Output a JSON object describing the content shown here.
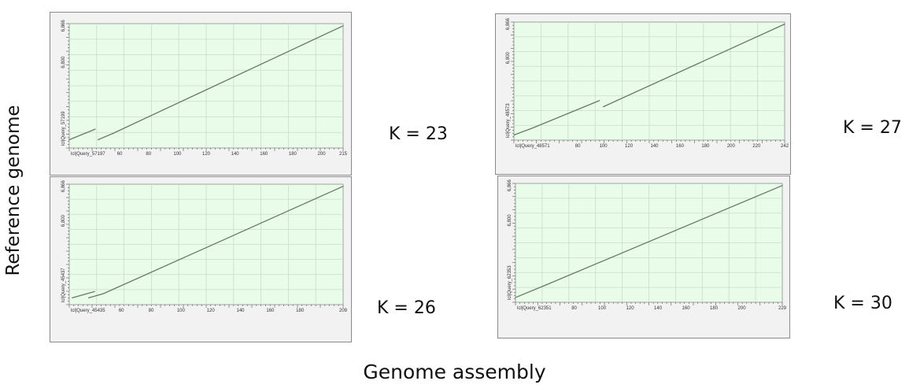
{
  "figure": {
    "ylabel": "Reference genome",
    "xlabel": "Genome assembly"
  },
  "chart_data": [
    {
      "type": "line",
      "k_label": "K = 23",
      "x_start_label": "lcl|Query_57197",
      "y_start_label": "lcl|Query_57199",
      "x_ticks": [
        "60",
        "80",
        "100",
        "120",
        "140",
        "160",
        "180",
        "200",
        "215"
      ],
      "y_ticks": [
        "6,866",
        "6,800"
      ],
      "xlim": [
        25,
        215
      ],
      "ylim": [
        6645,
        6870
      ],
      "series": [
        {
          "x": [
            25,
            43
          ],
          "y": [
            6660,
            6679
          ]
        },
        {
          "x": [
            45,
            55
          ],
          "y": [
            6660,
            6671
          ]
        },
        {
          "x": [
            55,
            215
          ],
          "y": [
            6671,
            6866
          ]
        }
      ]
    },
    {
      "type": "line",
      "k_label": "K = 27",
      "x_start_label": "lcl|Query_48571",
      "y_start_label": "lcl|Query_48573",
      "x_ticks": [
        "80",
        "100",
        "120",
        "140",
        "160",
        "180",
        "200",
        "220",
        "242"
      ],
      "y_ticks": [
        "6,866",
        "6,800"
      ],
      "xlim": [
        30,
        242
      ],
      "ylim": [
        6640,
        6870
      ],
      "series": [
        {
          "x": [
            30,
            45
          ],
          "y": [
            6650,
            6664
          ]
        },
        {
          "x": [
            45,
            97
          ],
          "y": [
            6664,
            6717
          ]
        },
        {
          "x": [
            100,
            242
          ],
          "y": [
            6705,
            6866
          ]
        }
      ]
    },
    {
      "type": "line",
      "k_label": "K = 26",
      "x_start_label": "lcl|Query_45435",
      "y_start_label": "lcl|Query_45437",
      "x_ticks": [
        "60",
        "80",
        "100",
        "120",
        "140",
        "160",
        "180",
        "209"
      ],
      "y_ticks": [
        "6,866",
        "6,800"
      ],
      "xlim": [
        25,
        209
      ],
      "ylim": [
        6640,
        6870
      ],
      "series": [
        {
          "x": [
            27,
            42
          ],
          "y": [
            6653,
            6665
          ]
        },
        {
          "x": [
            38,
            48
          ],
          "y": [
            6653,
            6661
          ]
        },
        {
          "x": [
            48,
            209
          ],
          "y": [
            6661,
            6866
          ]
        }
      ]
    },
    {
      "type": "line",
      "k_label": "K = 30",
      "x_start_label": "lcl|Query_62351",
      "y_start_label": "lcl|Query_62353",
      "x_ticks": [
        "80",
        "100",
        "120",
        "140",
        "160",
        "180",
        "200",
        "229"
      ],
      "y_ticks": [
        "6,866",
        "6,800"
      ],
      "xlim": [
        38,
        229
      ],
      "ylim": [
        6645,
        6870
      ],
      "series": [
        {
          "x": [
            38,
            60
          ],
          "y": [
            6654,
            6678
          ]
        },
        {
          "x": [
            60,
            229
          ],
          "y": [
            6678,
            6866
          ]
        }
      ]
    }
  ]
}
